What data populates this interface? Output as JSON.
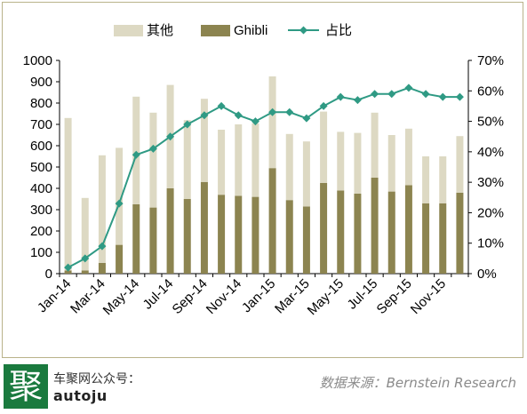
{
  "chart_data": {
    "type": "bar",
    "categories": [
      "Jan-14",
      "Feb-14",
      "Mar-14",
      "Apr-14",
      "May-14",
      "Jun-14",
      "Jul-14",
      "Aug-14",
      "Sep-14",
      "Oct-14",
      "Nov-14",
      "Dec-14",
      "Jan-15",
      "Feb-15",
      "Mar-15",
      "Apr-15",
      "May-15",
      "Jun-15",
      "Jul-15",
      "Aug-15",
      "Sep-15",
      "Oct-15",
      "Nov-15",
      "Dec-15"
    ],
    "x_tick_labels": [
      "Jan-14",
      "Mar-14",
      "May-14",
      "Jul-14",
      "Sep-14",
      "Nov-14",
      "Jan-15",
      "Mar-15",
      "May-15",
      "Jul-15",
      "Sep-15",
      "Nov-15"
    ],
    "series": [
      {
        "name": "其他",
        "kind": "stacked-bar",
        "color": "#ddd9c3",
        "values": [
          715,
          340,
          505,
          455,
          505,
          445,
          485,
          370,
          390,
          305,
          335,
          345,
          430,
          310,
          305,
          335,
          275,
          285,
          305,
          265,
          265,
          220,
          220,
          265
        ]
      },
      {
        "name": "Ghibli",
        "kind": "stacked-bar",
        "color": "#8c8450",
        "values": [
          15,
          15,
          50,
          135,
          325,
          310,
          400,
          350,
          430,
          370,
          365,
          360,
          495,
          345,
          315,
          425,
          390,
          375,
          450,
          385,
          415,
          330,
          330,
          380
        ]
      },
      {
        "name": "占比",
        "kind": "line",
        "axis": "right",
        "color": "#2f9a84",
        "values": [
          2,
          5,
          9,
          23,
          39,
          41,
          45,
          49,
          52,
          55,
          52,
          50,
          53,
          53,
          51,
          55,
          58,
          57,
          59,
          59,
          61,
          59,
          58,
          58
        ]
      }
    ],
    "y_left": {
      "min": 0,
      "max": 1000,
      "step": 100,
      "ticks": [
        "0",
        "100",
        "200",
        "300",
        "400",
        "500",
        "600",
        "700",
        "800",
        "900",
        "1000"
      ]
    },
    "y_right": {
      "min": 0,
      "max": 70,
      "step": 10,
      "ticks": [
        "0%",
        "10%",
        "20%",
        "30%",
        "40%",
        "50%",
        "60%",
        "70%"
      ]
    },
    "title": "",
    "xlabel": "",
    "ylabel": "",
    "legend_position": "top",
    "grid": false
  },
  "legend": {
    "other": "其他",
    "ghibli": "Ghibli",
    "share": "占比"
  },
  "footer": {
    "logo_char": "聚",
    "wechat_label": "车聚网公众号：",
    "wechat_id": "autoju",
    "source": "数据来源：Bernstein Research"
  }
}
